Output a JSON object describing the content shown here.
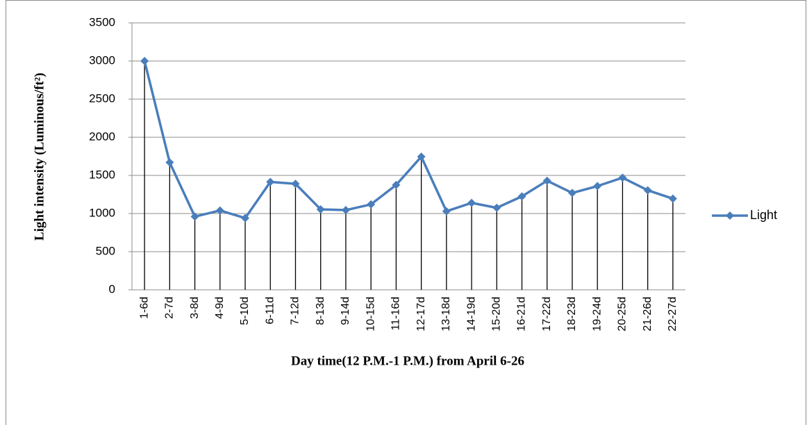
{
  "chart_data": {
    "type": "line",
    "xlabel": "Day time(12 P.M.-1 P.M.) from April 6-26",
    "ylabel": "Light intensity (Luminous/ft²)",
    "categories": [
      "1-6d",
      "2-7d",
      "3-8d",
      "4-9d",
      "5-10d",
      "6-11d",
      "7-12d",
      "8-13d",
      "9-14d",
      "10-15d",
      "11-16d",
      "12-17d",
      "13-18d",
      "14-19d",
      "15-20d",
      "16-21d",
      "17-22d",
      "18-23d",
      "19-24d",
      "20-25d",
      "21-26d",
      "22-27d"
    ],
    "series": [
      {
        "name": "Light",
        "color": "#4a7ebb",
        "values": [
          3000,
          1670,
          960,
          1040,
          940,
          1415,
          1390,
          1055,
          1045,
          1120,
          1375,
          1745,
          1030,
          1140,
          1075,
          1225,
          1430,
          1270,
          1360,
          1470,
          1305,
          1195
        ]
      }
    ],
    "ylim": [
      0,
      3500
    ],
    "yticks": [
      0,
      500,
      1000,
      1500,
      2000,
      2500,
      3000,
      3500
    ],
    "grid": true,
    "drop_lines": true,
    "legend": "right"
  }
}
